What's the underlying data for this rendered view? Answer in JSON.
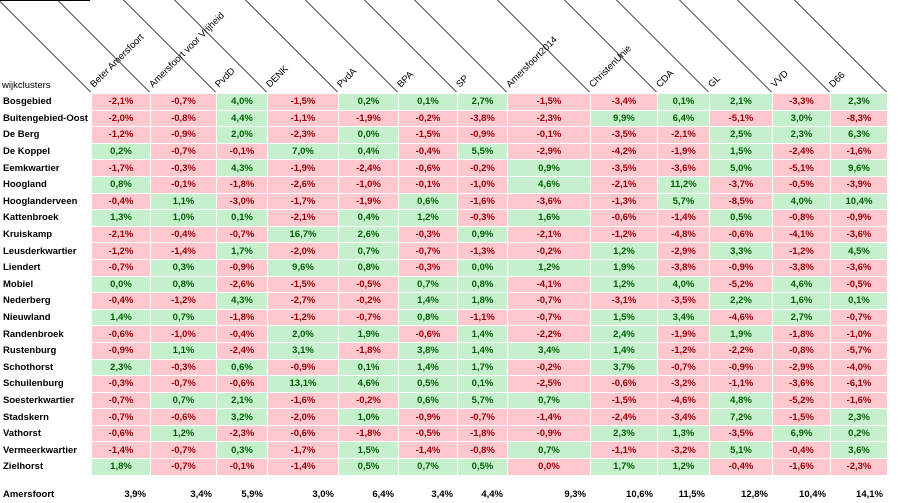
{
  "table": {
    "row_header": "wijkclusters",
    "columns": [
      "Beter Amersfoort",
      "Amersfoort voor Vrijheid",
      "PvdD",
      "DENK",
      "PvdA",
      "BPA",
      "SP",
      "Amersfoort2014",
      "ChristenUnie",
      "CDA",
      "GL",
      "VVD",
      "D66"
    ],
    "rows": [
      {
        "name": "Bosgebied",
        "values": [
          "-2,1%",
          "-0,7%",
          "4,0%",
          "-1,5%",
          "0,2%",
          "0,1%",
          "2,7%",
          "-1,5%",
          "-3,4%",
          "0,1%",
          "2,1%",
          "-3,3%",
          "2,3%"
        ]
      },
      {
        "name": "Buitengebied-Oost",
        "values": [
          "-2,0%",
          "-0,8%",
          "4,4%",
          "-1,1%",
          "-1,9%",
          "-0,2%",
          "-3,8%",
          "-2,3%",
          "9,9%",
          "6,4%",
          "-5,1%",
          "3,0%",
          "-8,3%"
        ]
      },
      {
        "name": "De Berg",
        "values": [
          "-1,2%",
          "-0,9%",
          "2,0%",
          "-2,3%",
          "0,0%",
          "-1,5%",
          "-0,9%",
          "-0,1%",
          "-3,5%",
          "-2,1%",
          "2,5%",
          "2,3%",
          "6,3%"
        ]
      },
      {
        "name": "De Koppel",
        "values": [
          "0,2%",
          "-0,7%",
          "-0,1%",
          "7,0%",
          "0,4%",
          "-0,4%",
          "5,5%",
          "-2,9%",
          "-4,2%",
          "-1,9%",
          "1,5%",
          "-2,4%",
          "-1,6%"
        ]
      },
      {
        "name": "Eemkwartier",
        "values": [
          "-1,7%",
          "-0,3%",
          "4,3%",
          "-1,9%",
          "-2,4%",
          "-0,6%",
          "-0,2%",
          "0,9%",
          "-3,5%",
          "-3,6%",
          "5,0%",
          "-5,1%",
          "9,6%"
        ]
      },
      {
        "name": "Hoogland",
        "values": [
          "0,8%",
          "-0,1%",
          "-1,8%",
          "-2,6%",
          "-1,0%",
          "-0,1%",
          "-1,0%",
          "4,6%",
          "-2,1%",
          "11,2%",
          "-3,7%",
          "-0,5%",
          "-3,9%"
        ]
      },
      {
        "name": "Hooglanderveen",
        "values": [
          "-0,4%",
          "1,1%",
          "-3,0%",
          "-1,7%",
          "-1,9%",
          "0,6%",
          "-1,6%",
          "-3,6%",
          "-1,3%",
          "5,7%",
          "-8,5%",
          "4,0%",
          "10,4%"
        ]
      },
      {
        "name": "Kattenbroek",
        "values": [
          "1,3%",
          "1,0%",
          "0,1%",
          "-2,1%",
          "0,4%",
          "1,2%",
          "-0,3%",
          "1,6%",
          "-0,6%",
          "-1,4%",
          "0,5%",
          "-0,8%",
          "-0,9%"
        ]
      },
      {
        "name": "Kruiskamp",
        "values": [
          "-2,1%",
          "-0,4%",
          "-0,7%",
          "16,7%",
          "2,6%",
          "-0,3%",
          "0,9%",
          "-2,1%",
          "-1,2%",
          "-4,8%",
          "-0,6%",
          "-4,1%",
          "-3,6%"
        ]
      },
      {
        "name": "Leusderkwartier",
        "values": [
          "-1,2%",
          "-1,4%",
          "1,7%",
          "-2,0%",
          "0,7%",
          "-0,7%",
          "-1,3%",
          "-0,2%",
          "1,2%",
          "-2,9%",
          "3,3%",
          "-1,2%",
          "4,5%"
        ]
      },
      {
        "name": "Liendert",
        "values": [
          "-0,7%",
          "0,3%",
          "-0,9%",
          "9,6%",
          "0,8%",
          "-0,3%",
          "0,0%",
          "1,2%",
          "1,9%",
          "-3,8%",
          "-0,9%",
          "-3,8%",
          "-3,6%"
        ]
      },
      {
        "name": "Mobiel",
        "values": [
          "0,0%",
          "0,8%",
          "-2,6%",
          "-1,5%",
          "-0,5%",
          "0,7%",
          "0,8%",
          "-4,1%",
          "1,2%",
          "4,0%",
          "-5,2%",
          "4,6%",
          "-0,5%"
        ]
      },
      {
        "name": "Nederberg",
        "values": [
          "-0,4%",
          "-1,2%",
          "4,3%",
          "-2,7%",
          "-0,2%",
          "1,4%",
          "1,8%",
          "-0,7%",
          "-3,1%",
          "-3,5%",
          "2,2%",
          "1,6%",
          "0,1%"
        ]
      },
      {
        "name": "Nieuwland",
        "values": [
          "1,4%",
          "0,7%",
          "-1,8%",
          "-1,2%",
          "-0,7%",
          "0,8%",
          "-1,1%",
          "-0,7%",
          "1,5%",
          "3,4%",
          "-4,6%",
          "2,7%",
          "-0,7%"
        ]
      },
      {
        "name": "Randenbroek",
        "values": [
          "-0,6%",
          "-1,0%",
          "-0,4%",
          "2,0%",
          "1,9%",
          "-0,6%",
          "1,4%",
          "-2,2%",
          "2,4%",
          "-1,9%",
          "1,9%",
          "-1,8%",
          "-1,0%"
        ]
      },
      {
        "name": "Rustenburg",
        "values": [
          "-0,9%",
          "1,1%",
          "-2,4%",
          "3,1%",
          "-1,8%",
          "3,8%",
          "1,4%",
          "3,4%",
          "1,4%",
          "-1,2%",
          "-2,2%",
          "-0,8%",
          "-5,7%"
        ]
      },
      {
        "name": "Schothorst",
        "values": [
          "2,3%",
          "-0,3%",
          "0,6%",
          "-0,9%",
          "0,1%",
          "1,4%",
          "1,7%",
          "-0,2%",
          "3,7%",
          "-0,7%",
          "-0,9%",
          "-2,9%",
          "-4,0%"
        ]
      },
      {
        "name": "Schuilenburg",
        "values": [
          "-0,3%",
          "-0,7%",
          "-0,6%",
          "13,1%",
          "4,6%",
          "0,5%",
          "0,1%",
          "-2,5%",
          "-0,6%",
          "-3,2%",
          "-1,1%",
          "-3,6%",
          "-6,1%"
        ]
      },
      {
        "name": "Soesterkwartier",
        "values": [
          "-0,7%",
          "0,7%",
          "2,1%",
          "-1,6%",
          "-0,2%",
          "0,6%",
          "5,7%",
          "0,7%",
          "-1,5%",
          "-4,6%",
          "4,8%",
          "-5,2%",
          "-1,6%"
        ]
      },
      {
        "name": "Stadskern",
        "values": [
          "-0,7%",
          "-0,6%",
          "3,2%",
          "-2,0%",
          "1,0%",
          "-0,9%",
          "-0,7%",
          "-1,4%",
          "-2,4%",
          "-3,4%",
          "7,2%",
          "-1,5%",
          "2,3%"
        ]
      },
      {
        "name": "Vathorst",
        "values": [
          "-0,6%",
          "1,2%",
          "-2,3%",
          "-0,6%",
          "-1,8%",
          "-0,5%",
          "-1,8%",
          "-0,9%",
          "2,3%",
          "1,3%",
          "-3,5%",
          "6,9%",
          "0,2%"
        ]
      },
      {
        "name": "Vermeerkwartier",
        "values": [
          "-1,4%",
          "-0,7%",
          "0,3%",
          "-1,7%",
          "1,5%",
          "-1,4%",
          "-0,8%",
          "0,7%",
          "-1,1%",
          "-3,2%",
          "5,1%",
          "-0,4%",
          "3,6%"
        ]
      },
      {
        "name": "Zielhorst",
        "values": [
          "1,8%",
          "-0,7%",
          "-0,1%",
          "-1,4%",
          "0,5%",
          "0,7%",
          "0,5%",
          "0,0%",
          "1,7%",
          "1,2%",
          "-0,4%",
          "-1,6%",
          "-2,3%"
        ]
      }
    ],
    "total": {
      "name": "Amersfoort",
      "values": [
        "3,9%",
        "3,4%",
        "5,9%",
        "3,0%",
        "6,4%",
        "3,4%",
        "4,4%",
        "9,3%",
        "10,6%",
        "11,5%",
        "12,8%",
        "10,4%",
        "14,1%"
      ]
    }
  },
  "colors": {
    "positive_fill": "#c6efce",
    "positive_text": "#006100",
    "negative_fill": "#ffc7ce",
    "negative_text": "#9c0006"
  }
}
